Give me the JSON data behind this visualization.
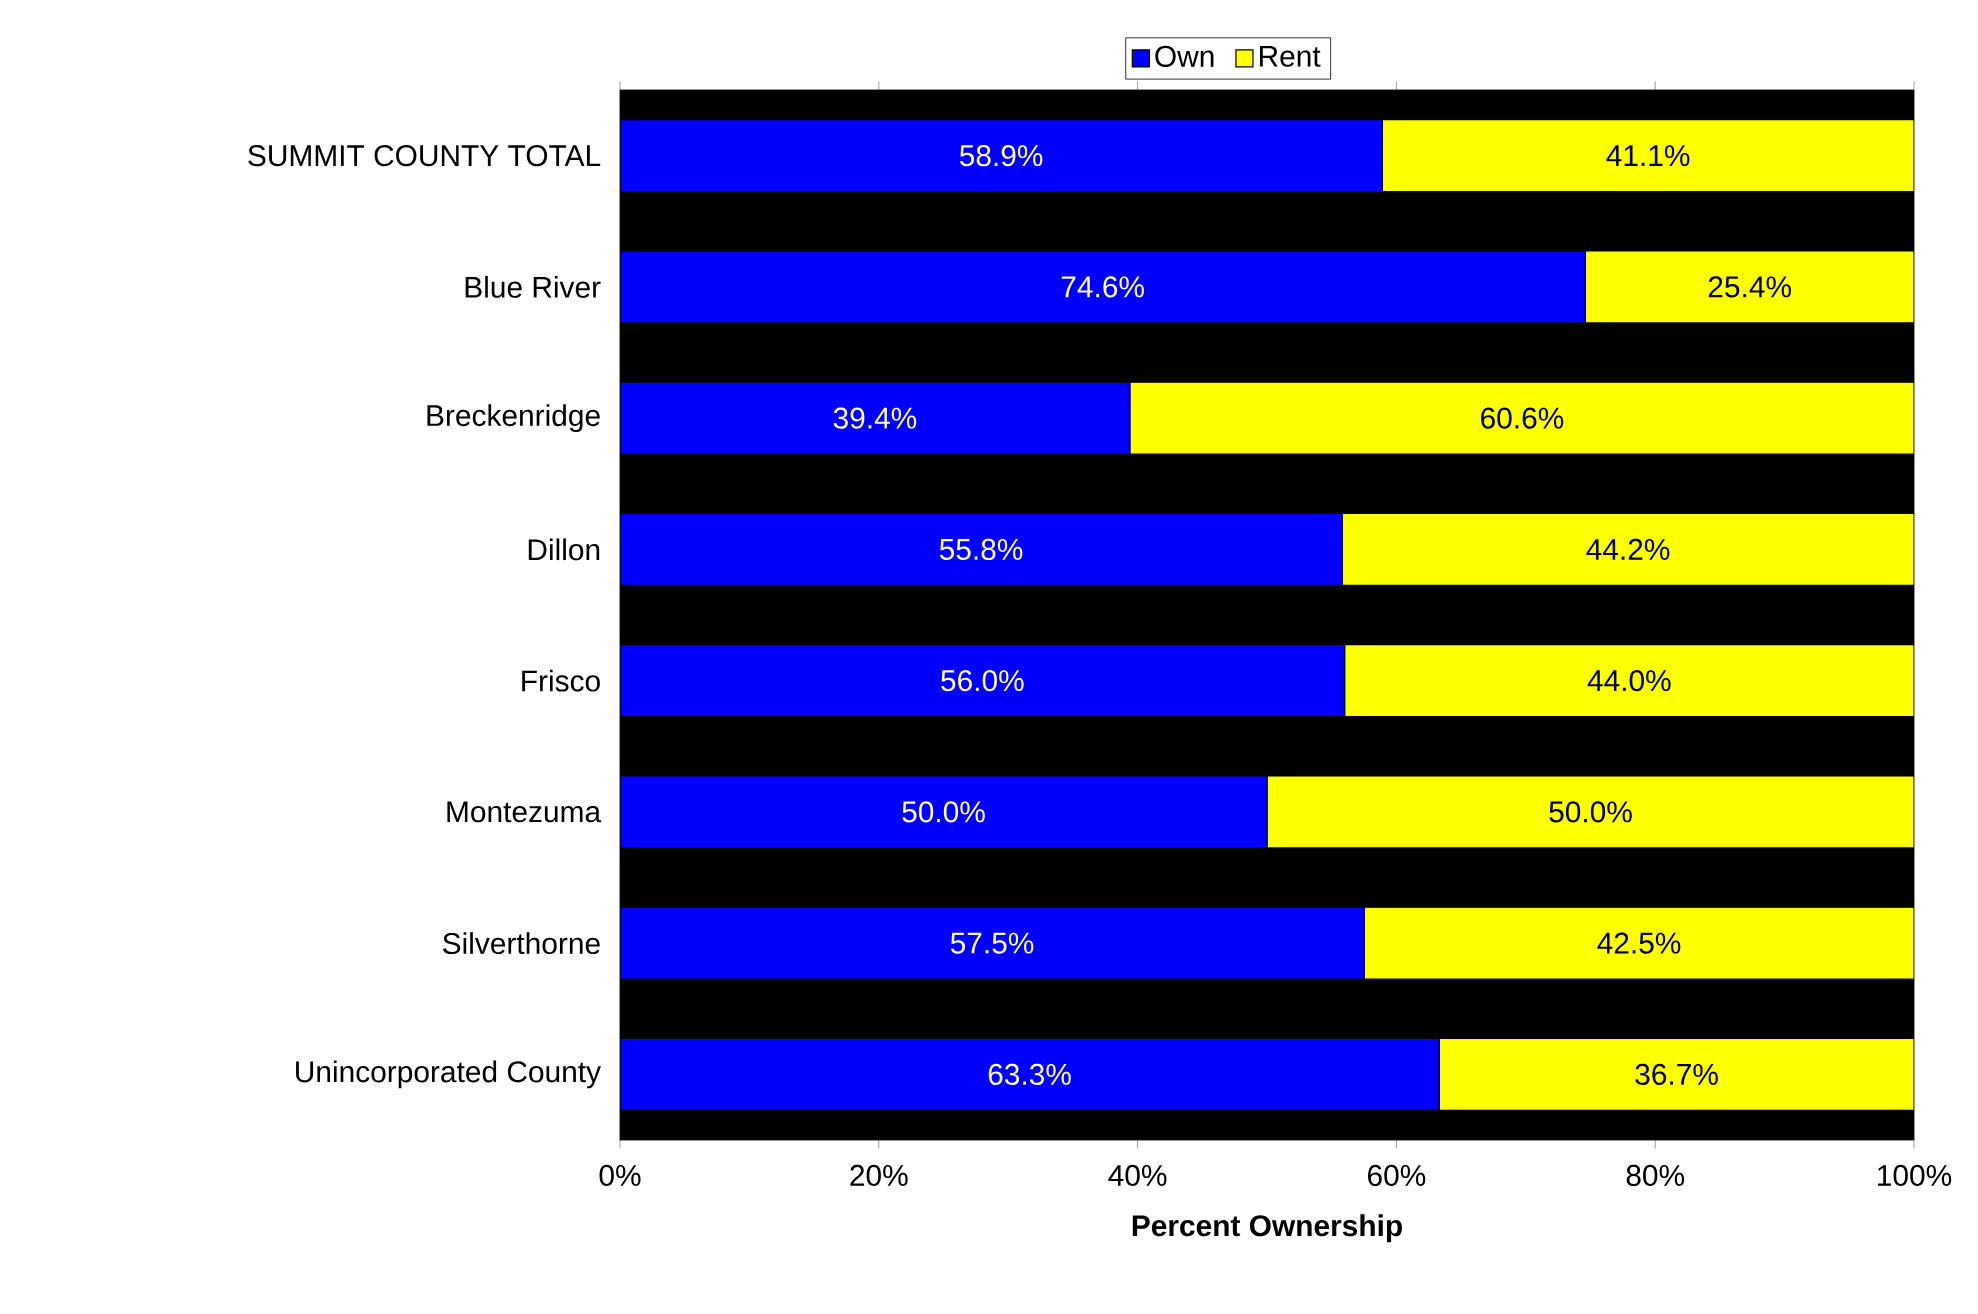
{
  "chart_data": {
    "type": "bar",
    "orientation": "horizontal",
    "stacked": true,
    "categories": [
      "SUMMIT COUNTY TOTAL",
      "Blue River",
      "Breckenridge",
      "Dillon",
      "Frisco",
      "Montezuma",
      "Silverthorne",
      "Unincorporated County"
    ],
    "series": [
      {
        "name": "Own",
        "color": "#0000ff",
        "values": [
          58.9,
          74.6,
          39.4,
          55.8,
          56.0,
          50.0,
          57.5,
          63.3
        ],
        "value_labels": [
          "58.9%",
          "74.6%",
          "39.4%",
          "55.8%",
          "56.0%",
          "50.0%",
          "57.5%",
          "63.3%"
        ]
      },
      {
        "name": "Rent",
        "color": "#ffff00",
        "values": [
          41.1,
          25.4,
          60.6,
          44.2,
          44.0,
          50.0,
          42.5,
          36.7
        ],
        "value_labels": [
          "41.1%",
          "25.4%",
          "60.6%",
          "44.2%",
          "44.0%",
          "50.0%",
          "42.5%",
          "36.7%"
        ]
      }
    ],
    "xlim": [
      0,
      100
    ],
    "xticks": [
      {
        "value": 0,
        "label": "0%"
      },
      {
        "value": 20,
        "label": "20%"
      },
      {
        "value": 40,
        "label": "40%"
      },
      {
        "value": 60,
        "label": "60%"
      },
      {
        "value": 80,
        "label": "80%"
      },
      {
        "value": 100,
        "label": "100%"
      }
    ],
    "xlabel": "Percent Ownership",
    "legend": "top"
  }
}
